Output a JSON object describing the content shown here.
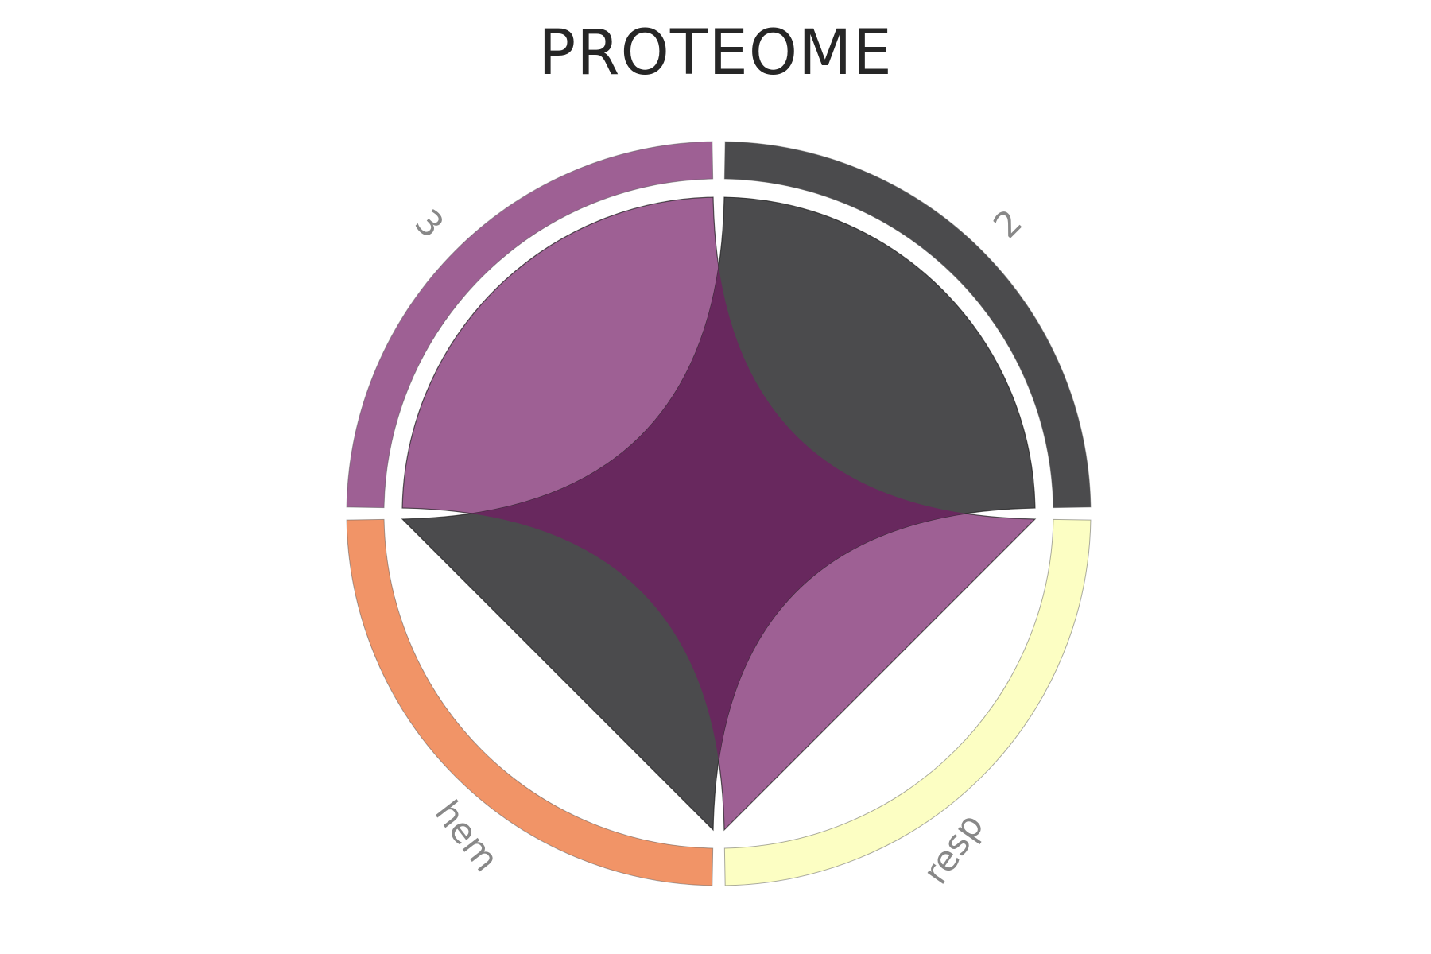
{
  "chart_data": {
    "type": "chord",
    "title": "PROTEOME",
    "groups": [
      {
        "name": "3",
        "color": "#9e6094"
      },
      {
        "name": "2",
        "color": "#4b4b4d"
      },
      {
        "name": "resp",
        "color": "#fcfec3"
      },
      {
        "name": "hem",
        "color": "#f19467"
      }
    ],
    "links": [
      {
        "source": "3",
        "target": "resp",
        "value": 1,
        "color": "#9e6094"
      },
      {
        "source": "2",
        "target": "hem",
        "value": 1,
        "color": "#4b4b4d"
      }
    ],
    "ribbon_overlap_color": "#68285e"
  }
}
